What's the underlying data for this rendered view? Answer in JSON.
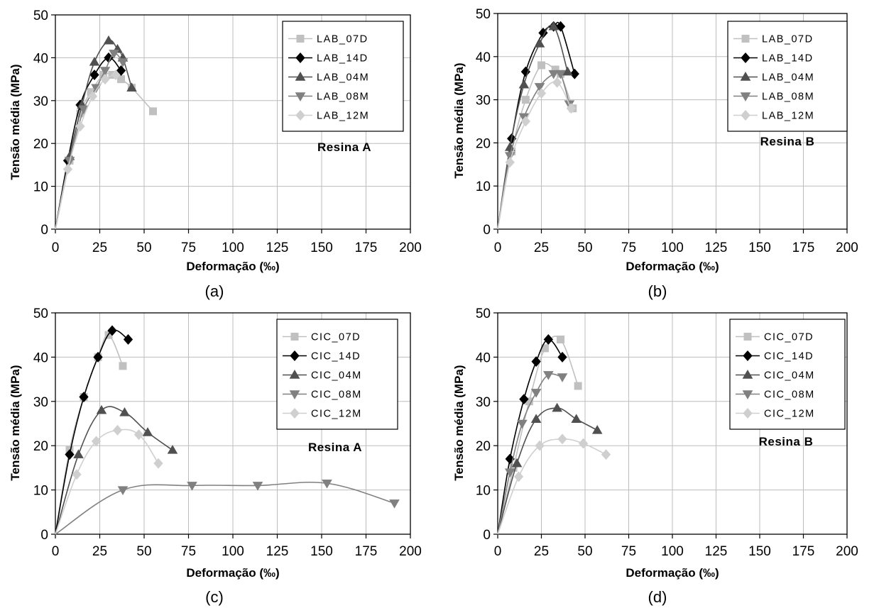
{
  "chart_data": [
    {
      "type": "line",
      "panel_label": "(a)",
      "annotation": "Resina A",
      "xlabel": "Deformação (‰)",
      "ylabel": "Tensão média (MPa)",
      "xlim": [
        0,
        200
      ],
      "ylim": [
        0,
        50
      ],
      "xticks": [
        "0",
        "25",
        "50",
        "75",
        "100",
        "125",
        "150",
        "175",
        "200"
      ],
      "yticks": [
        "0",
        "10",
        "20",
        "30",
        "40",
        "50"
      ],
      "grid": true,
      "legend_position": "top-right",
      "series": [
        {
          "name": "LAB_07D",
          "color": "#c0c0c0",
          "marker": "square",
          "x": [
            0,
            8,
            14,
            20,
            27,
            32,
            37,
            43,
            55
          ],
          "y": [
            0,
            16,
            27,
            32,
            36,
            36,
            35,
            33,
            27.5
          ]
        },
        {
          "name": "LAB_14D",
          "color": "#000000",
          "marker": "diamond",
          "x": [
            0,
            7,
            14,
            22,
            30,
            37
          ],
          "y": [
            0,
            16,
            29,
            36,
            40,
            37
          ]
        },
        {
          "name": "LAB_04M",
          "color": "#505050",
          "marker": "triangle-up",
          "x": [
            0,
            8,
            15,
            22,
            30,
            35,
            38,
            43
          ],
          "y": [
            0,
            17,
            29,
            39,
            44,
            42,
            40,
            33
          ]
        },
        {
          "name": "LAB_08M",
          "color": "#808080",
          "marker": "triangle-down",
          "x": [
            0,
            8,
            16,
            23,
            28,
            33,
            38
          ],
          "y": [
            0,
            16,
            28,
            33,
            37,
            41,
            39
          ]
        },
        {
          "name": "LAB_12M",
          "color": "#cfcfcf",
          "marker": "diamond",
          "x": [
            0,
            7,
            14,
            21,
            28,
            34
          ],
          "y": [
            0,
            14,
            24,
            31,
            35,
            36
          ]
        }
      ]
    },
    {
      "type": "line",
      "panel_label": "(b)",
      "annotation": "Resina B",
      "xlabel": "Deformação (‰)",
      "ylabel": "Tensão média (MPa)",
      "xlim": [
        0,
        200
      ],
      "ylim": [
        0,
        50
      ],
      "xticks": [
        "0",
        "25",
        "50",
        "75",
        "100",
        "125",
        "150",
        "175",
        "200"
      ],
      "yticks": [
        "0",
        "10",
        "20",
        "30",
        "40",
        "50"
      ],
      "grid": true,
      "legend_position": "top-right",
      "series": [
        {
          "name": "LAB_07D",
          "color": "#c0c0c0",
          "marker": "square",
          "x": [
            0,
            8,
            16,
            25,
            33,
            36,
            43
          ],
          "y": [
            0,
            18,
            30,
            38,
            37,
            36,
            28
          ]
        },
        {
          "name": "LAB_14D",
          "color": "#000000",
          "marker": "diamond",
          "x": [
            0,
            8,
            16,
            26,
            32,
            36,
            44
          ],
          "y": [
            0,
            21,
            36.5,
            45.5,
            47,
            47,
            36
          ]
        },
        {
          "name": "LAB_04M",
          "color": "#505050",
          "marker": "triangle-up",
          "x": [
            0,
            7,
            15,
            24,
            32,
            40
          ],
          "y": [
            0,
            19,
            33.5,
            43,
            47,
            36.5
          ]
        },
        {
          "name": "LAB_08M",
          "color": "#808080",
          "marker": "triangle-down",
          "x": [
            0,
            7,
            15,
            24,
            32,
            36,
            41
          ],
          "y": [
            0,
            17,
            26,
            33,
            36,
            36,
            29
          ]
        },
        {
          "name": "LAB_12M",
          "color": "#cfcfcf",
          "marker": "diamond",
          "x": [
            0,
            7,
            16,
            25,
            34,
            42
          ],
          "y": [
            0,
            15.5,
            25,
            31.5,
            34,
            28
          ]
        }
      ]
    },
    {
      "type": "line",
      "panel_label": "(c)",
      "annotation": "Resina A",
      "xlabel": "Deformação (‰)",
      "ylabel": "Tensão média (MPa)",
      "xlim": [
        0,
        200
      ],
      "ylim": [
        0,
        50
      ],
      "xticks": [
        "0",
        "25",
        "50",
        "75",
        "100",
        "125",
        "150",
        "175",
        "200"
      ],
      "yticks": [
        "0",
        "10",
        "20",
        "30",
        "40",
        "50"
      ],
      "grid": true,
      "legend_position": "top-right",
      "series": [
        {
          "name": "CIC_07D",
          "color": "#c0c0c0",
          "marker": "square",
          "x": [
            0,
            8,
            16,
            24,
            30,
            38
          ],
          "y": [
            0,
            19,
            31,
            40,
            45,
            38
          ]
        },
        {
          "name": "CIC_14D",
          "color": "#000000",
          "marker": "diamond",
          "x": [
            0,
            8,
            16,
            24,
            32,
            41
          ],
          "y": [
            0,
            18,
            31,
            40,
            46,
            44
          ]
        },
        {
          "name": "CIC_04M",
          "color": "#505050",
          "marker": "triangle-up",
          "x": [
            0,
            13,
            26,
            39,
            52,
            66
          ],
          "y": [
            0,
            18,
            28,
            27.5,
            23,
            19
          ]
        },
        {
          "name": "CIC_08M",
          "color": "#808080",
          "marker": "triangle-down",
          "x": [
            0,
            38,
            77,
            114,
            153,
            191
          ],
          "y": [
            0,
            10,
            11,
            11,
            11.5,
            7
          ]
        },
        {
          "name": "CIC_12M",
          "color": "#cfcfcf",
          "marker": "diamond",
          "x": [
            0,
            12,
            23,
            35,
            47,
            58
          ],
          "y": [
            0,
            13.5,
            21,
            23.5,
            22.5,
            16
          ]
        }
      ]
    },
    {
      "type": "line",
      "panel_label": "(d)",
      "annotation": "Resina B",
      "xlabel": "Deformação (‰)",
      "ylabel": "Tensão média (MPa)",
      "xlim": [
        0,
        200
      ],
      "ylim": [
        0,
        50
      ],
      "xticks": [
        "0",
        "25",
        "50",
        "75",
        "100",
        "125",
        "150",
        "175",
        "200"
      ],
      "yticks": [
        "0",
        "10",
        "20",
        "30",
        "40",
        "50"
      ],
      "grid": true,
      "legend_position": "top-right",
      "series": [
        {
          "name": "CIC_07D",
          "color": "#c0c0c0",
          "marker": "square",
          "x": [
            0,
            9,
            18,
            27,
            36,
            46
          ],
          "y": [
            0,
            15,
            30,
            42,
            44,
            33.5
          ]
        },
        {
          "name": "CIC_14D",
          "color": "#000000",
          "marker": "diamond",
          "x": [
            0,
            7,
            15,
            22,
            29,
            37
          ],
          "y": [
            0,
            17,
            30.5,
            39,
            44,
            40
          ]
        },
        {
          "name": "CIC_04M",
          "color": "#505050",
          "marker": "triangle-up",
          "x": [
            0,
            11,
            22,
            34,
            45,
            57
          ],
          "y": [
            0,
            16,
            26,
            28.5,
            26,
            23.5
          ]
        },
        {
          "name": "CIC_08M",
          "color": "#808080",
          "marker": "triangle-down",
          "x": [
            0,
            7,
            14,
            22,
            29,
            37
          ],
          "y": [
            0,
            14,
            25,
            32,
            36,
            35.5
          ]
        },
        {
          "name": "CIC_12M",
          "color": "#cfcfcf",
          "marker": "diamond",
          "x": [
            0,
            12,
            24,
            37,
            49,
            62
          ],
          "y": [
            0,
            13,
            20,
            21.5,
            20.5,
            18
          ]
        }
      ]
    }
  ]
}
